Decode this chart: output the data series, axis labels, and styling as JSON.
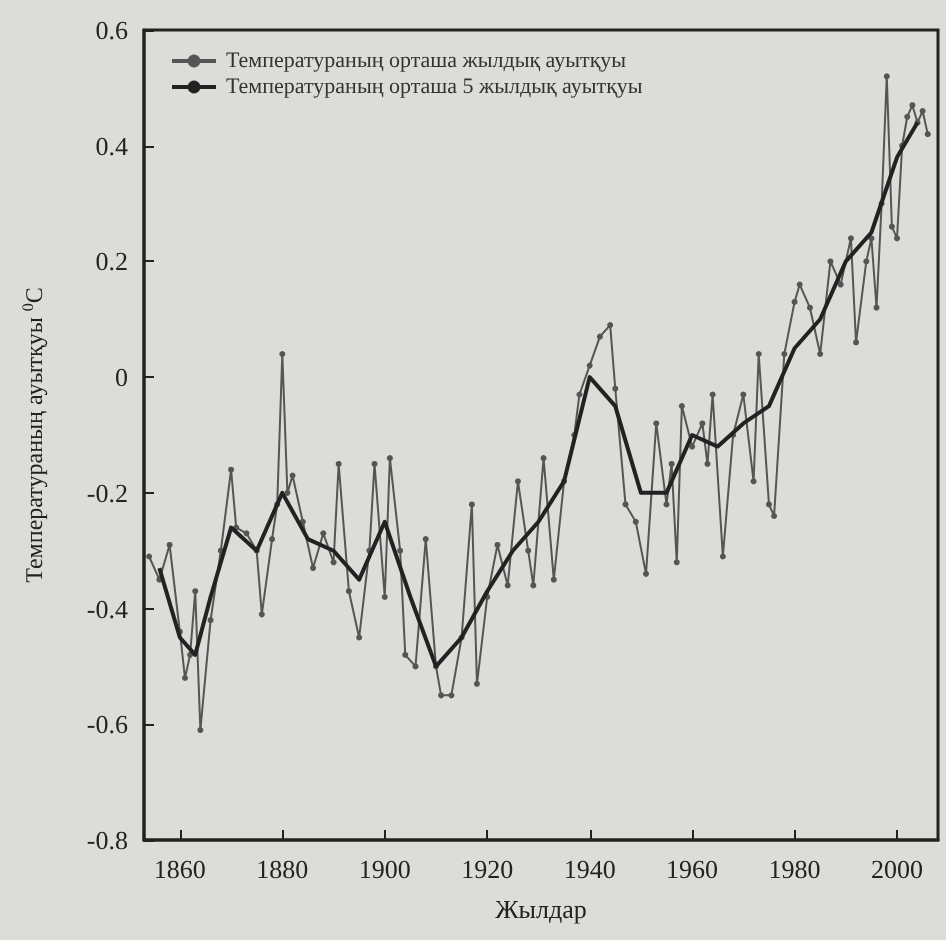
{
  "chart_data": {
    "type": "line",
    "xlabel": "Жылдар",
    "ylabel": "Температураның ауытқуы $^{0}$C",
    "xlim": [
      1853,
      2008
    ],
    "xticks": [
      1860,
      1880,
      1900,
      1920,
      1940,
      1960,
      1980,
      2000
    ],
    "ylim": [
      -0.8,
      0.6
    ],
    "yticks": [
      -0.8,
      -0.6,
      -0.4,
      -0.2,
      0,
      0.2,
      0.4,
      0.6
    ],
    "grid": false,
    "legend": "top left",
    "series": [
      {
        "name": "Температураның орташа жылдық ауытқуы",
        "color": "#555555",
        "marker": "circle",
        "x": [
          1854,
          1856,
          1858,
          1860,
          1861,
          1862,
          1863,
          1864,
          1866,
          1868,
          1870,
          1871,
          1873,
          1875,
          1876,
          1878,
          1879,
          1880,
          1881,
          1882,
          1884,
          1886,
          1888,
          1890,
          1891,
          1893,
          1895,
          1897,
          1898,
          1900,
          1901,
          1903,
          1904,
          1906,
          1908,
          1910,
          1911,
          1913,
          1915,
          1917,
          1918,
          1920,
          1922,
          1924,
          1926,
          1928,
          1929,
          1931,
          1933,
          1935,
          1937,
          1938,
          1940,
          1942,
          1944,
          1945,
          1947,
          1949,
          1951,
          1953,
          1955,
          1956,
          1957,
          1958,
          1960,
          1962,
          1963,
          1964,
          1966,
          1968,
          1970,
          1972,
          1973,
          1975,
          1976,
          1978,
          1980,
          1981,
          1983,
          1985,
          1987,
          1989,
          1991,
          1992,
          1994,
          1995,
          1996,
          1997,
          1998,
          1999,
          2000,
          2001,
          2002,
          2003,
          2004,
          2005,
          2006
        ],
        "values": [
          -0.31,
          -0.35,
          -0.29,
          -0.44,
          -0.52,
          -0.48,
          -0.37,
          -0.61,
          -0.42,
          -0.3,
          -0.16,
          -0.26,
          -0.27,
          -0.3,
          -0.41,
          -0.28,
          -0.22,
          0.04,
          -0.2,
          -0.17,
          -0.25,
          -0.33,
          -0.27,
          -0.32,
          -0.15,
          -0.37,
          -0.45,
          -0.3,
          -0.15,
          -0.38,
          -0.14,
          -0.3,
          -0.48,
          -0.5,
          -0.28,
          -0.5,
          -0.55,
          -0.55,
          -0.45,
          -0.22,
          -0.53,
          -0.38,
          -0.29,
          -0.36,
          -0.18,
          -0.3,
          -0.36,
          -0.14,
          -0.35,
          -0.18,
          -0.1,
          -0.03,
          0.02,
          0.07,
          0.09,
          -0.02,
          -0.22,
          -0.25,
          -0.34,
          -0.08,
          -0.22,
          -0.15,
          -0.32,
          -0.05,
          -0.12,
          -0.08,
          -0.15,
          -0.03,
          -0.31,
          -0.1,
          -0.03,
          -0.18,
          0.04,
          -0.22,
          -0.24,
          0.04,
          0.13,
          0.16,
          0.12,
          0.04,
          0.2,
          0.16,
          0.24,
          0.06,
          0.2,
          0.24,
          0.12,
          0.3,
          0.52,
          0.26,
          0.24,
          0.4,
          0.45,
          0.47,
          0.44,
          0.46,
          0.42
        ]
      },
      {
        "name": "Температураның орташа 5 жылдық ауытқуы",
        "color": "#222222",
        "marker": "none",
        "x": [
          1856,
          1860,
          1863,
          1866,
          1870,
          1875,
          1880,
          1885,
          1890,
          1895,
          1900,
          1905,
          1910,
          1915,
          1920,
          1925,
          1930,
          1935,
          1940,
          1945,
          1950,
          1955,
          1960,
          1965,
          1970,
          1975,
          1980,
          1985,
          1990,
          1995,
          2000,
          2004
        ],
        "values": [
          -0.33,
          -0.45,
          -0.48,
          -0.38,
          -0.26,
          -0.3,
          -0.2,
          -0.28,
          -0.3,
          -0.35,
          -0.25,
          -0.38,
          -0.5,
          -0.45,
          -0.37,
          -0.3,
          -0.25,
          -0.18,
          0,
          -0.05,
          -0.2,
          -0.2,
          -0.1,
          -0.12,
          -0.08,
          -0.05,
          0.05,
          0.1,
          0.2,
          0.25,
          0.38,
          0.44
        ]
      }
    ]
  }
}
